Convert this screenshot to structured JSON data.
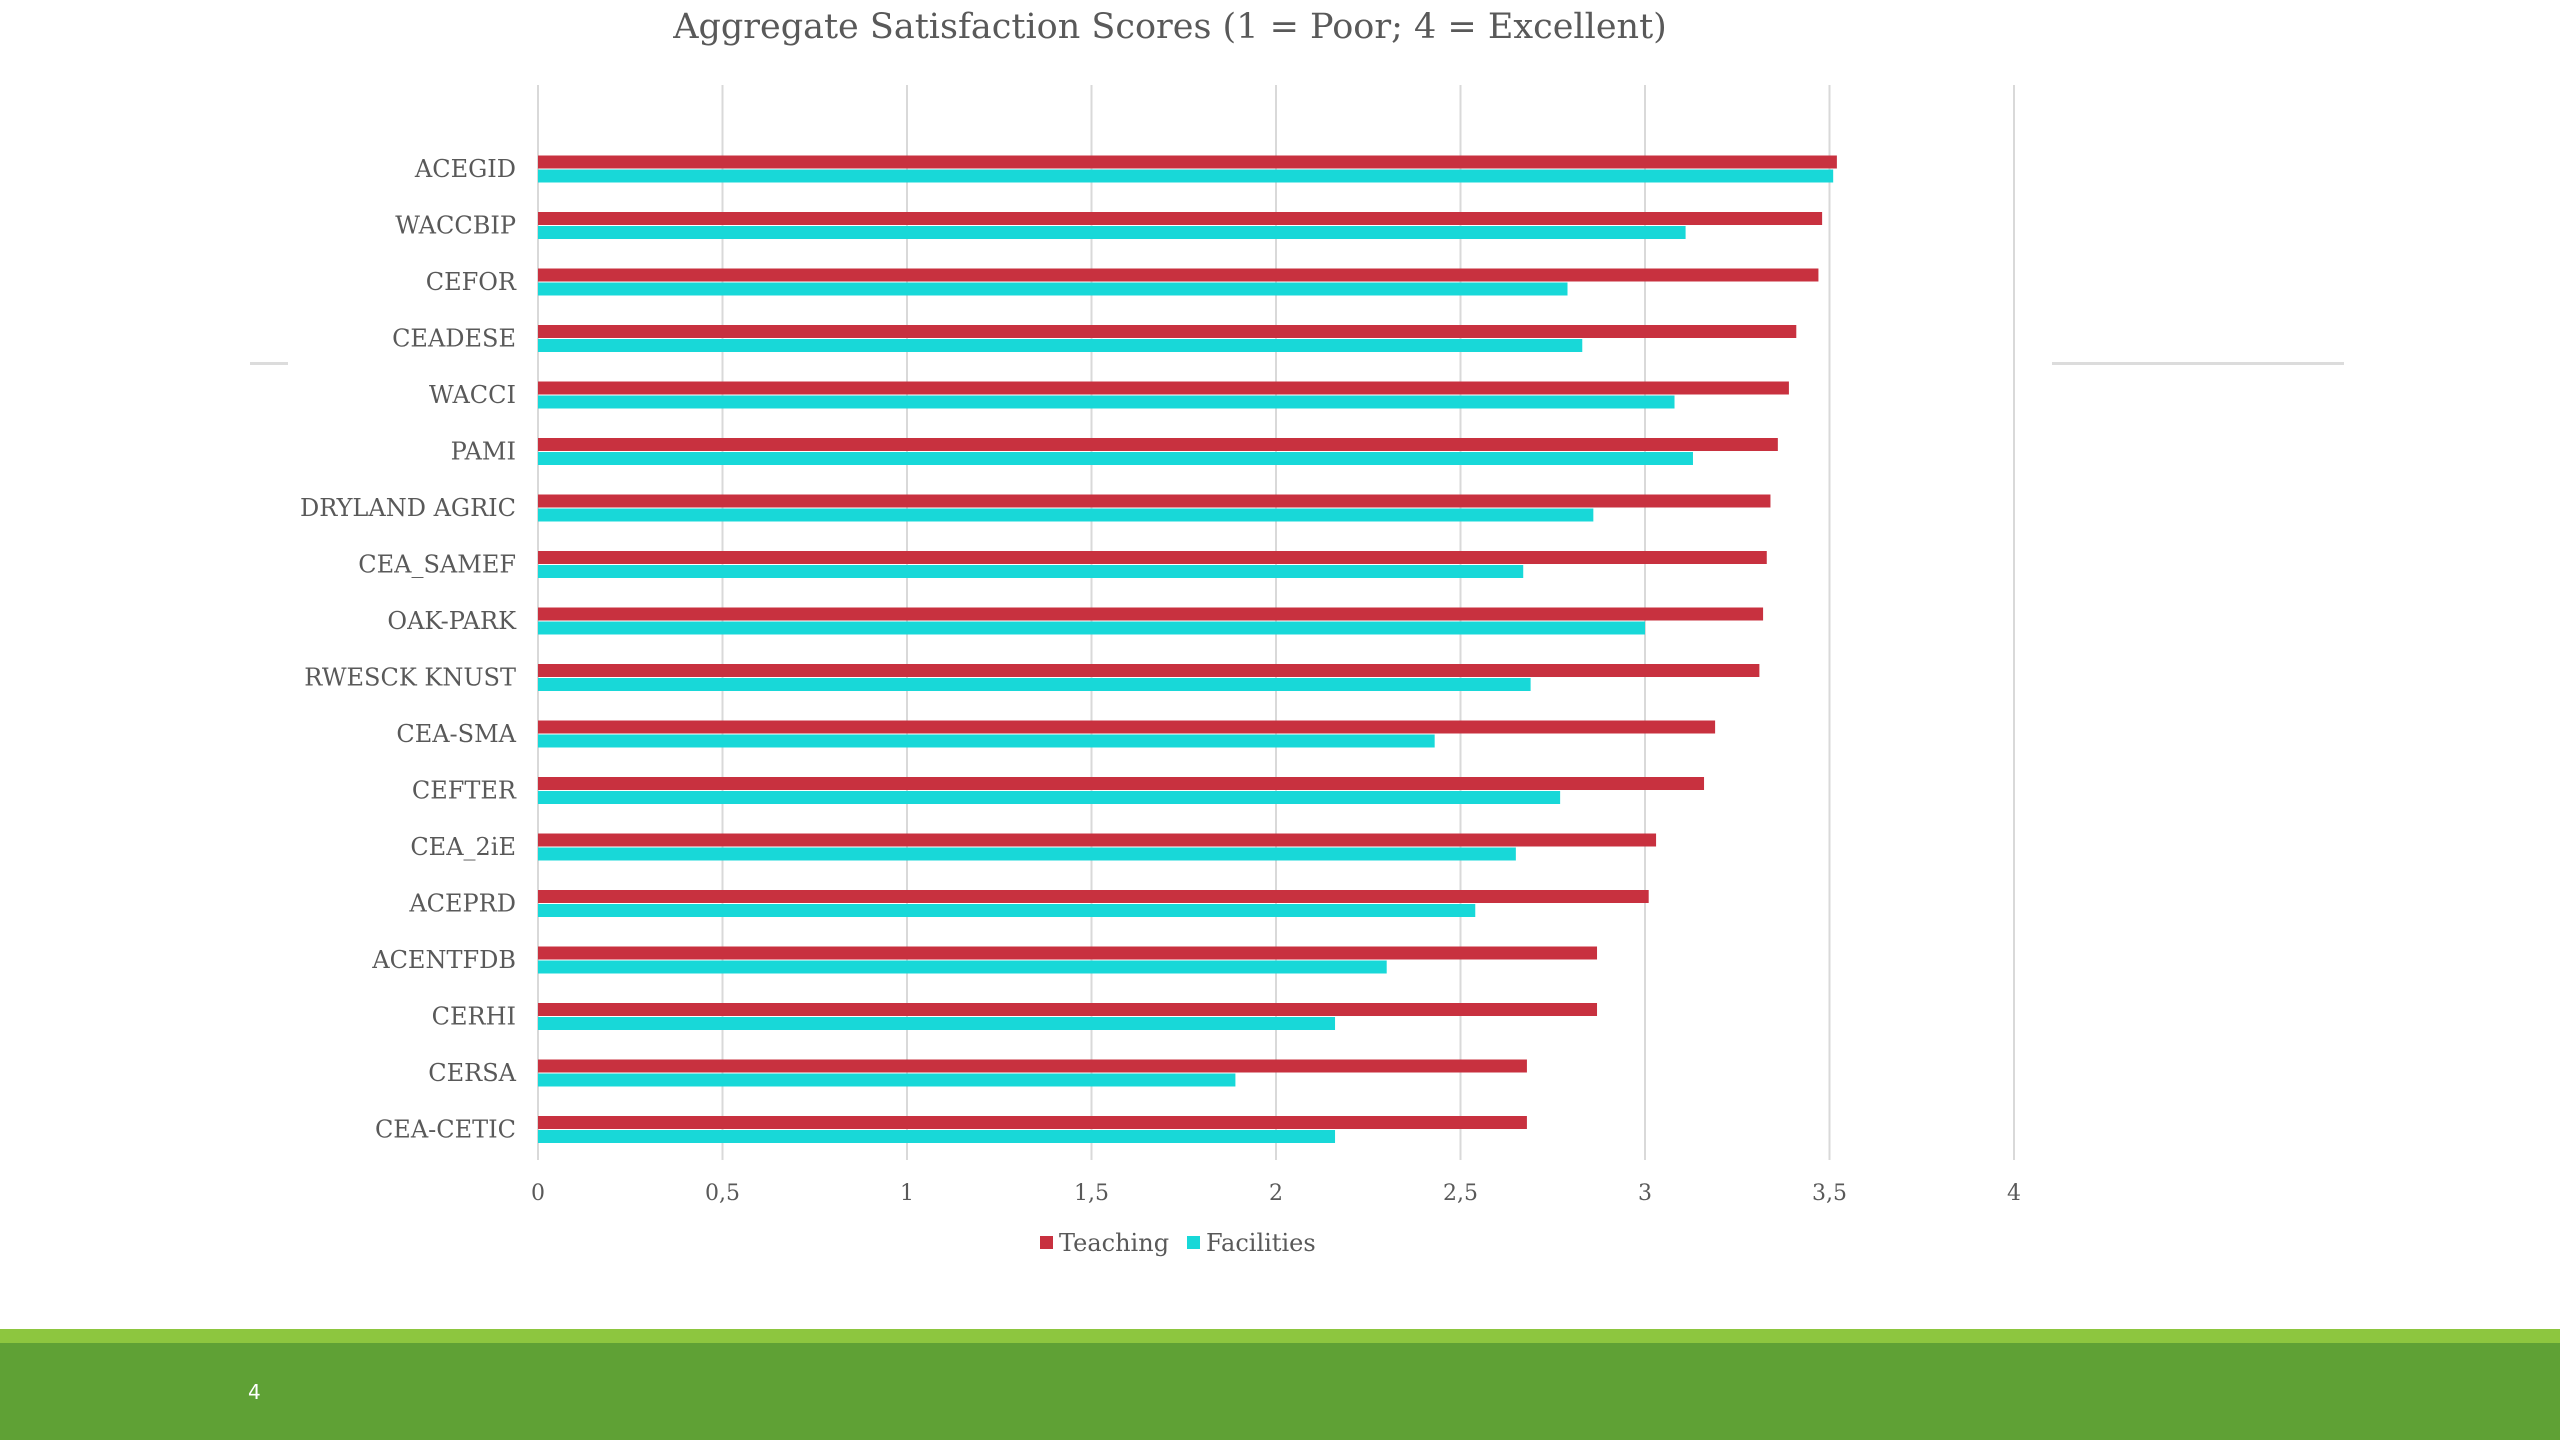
{
  "slide": {
    "number": "4"
  },
  "colors": {
    "teaching": "#c8313f",
    "facilities": "#18d8d8",
    "grid": "#d9d9d9",
    "axis_text": "#595959",
    "footer_light": "#8dc63f",
    "footer_dark": "#5fa135"
  },
  "chart_data": {
    "type": "bar",
    "orientation": "horizontal",
    "title": "Aggregate Satisfaction Scores (1 = Poor; 4 = Excellent)",
    "categories": [
      "ACEGID",
      "WACCBIP",
      "CEFOR",
      "CEADESE",
      "WACCI",
      "PAMI",
      "DRYLAND AGRIC",
      "CEA_SAMEF",
      "OAK-PARK",
      "RWESCK KNUST",
      "CEA-SMA",
      "CEFTER",
      "CEA_2iE",
      "ACEPRD",
      "ACENTFDB",
      "CERHI",
      "CERSA",
      "CEA-CETIC"
    ],
    "series": [
      {
        "name": "Teaching",
        "values": [
          3.52,
          3.48,
          3.47,
          3.41,
          3.39,
          3.36,
          3.34,
          3.33,
          3.32,
          3.31,
          3.19,
          3.16,
          3.03,
          3.01,
          2.87,
          2.87,
          2.68,
          2.68
        ]
      },
      {
        "name": "Facilities",
        "values": [
          3.51,
          3.11,
          2.79,
          2.83,
          3.08,
          3.13,
          2.86,
          2.67,
          3.0,
          2.69,
          2.43,
          2.77,
          2.65,
          2.54,
          2.3,
          2.16,
          1.89,
          2.16
        ]
      }
    ],
    "xlim": [
      0,
      4
    ],
    "xticks": [
      "0",
      "0,5",
      "1",
      "1,5",
      "2",
      "2,5",
      "3",
      "3,5",
      "4"
    ],
    "grid": true,
    "legend_position": "bottom"
  }
}
